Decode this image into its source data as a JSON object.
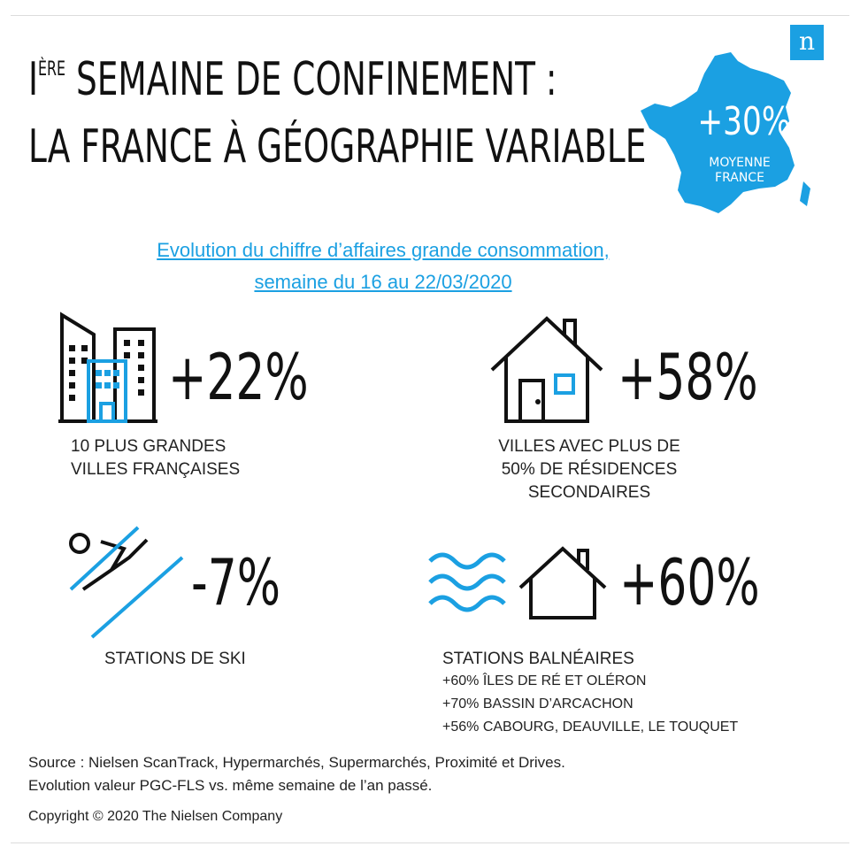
{
  "header": {
    "title_line1_prefix": "I",
    "title_line1_sup": "ÈRE",
    "title_line1_rest": " SEMAINE DE CONFINEMENT :",
    "title_line2": "LA FRANCE À GÉOGRAPHIE VARIABLE",
    "logo_letter": "n"
  },
  "france": {
    "value": "+30%",
    "label_line1": "MOYENNE",
    "label_line2": "FRANCE"
  },
  "subtitle": {
    "line1": "Evolution du chiffre d’affaires grande consommation,",
    "line2": "semaine du 16 au 22/03/2020"
  },
  "stats": [
    {
      "value": "+22%",
      "label_line1": "10 PLUS GRANDES",
      "label_line2": "VILLES FRANÇAISES"
    },
    {
      "value": "+58%",
      "label_line1": "VILLES AVEC PLUS DE",
      "label_line2": "50% DE RÉSIDENCES",
      "label_line3": "SECONDAIRES"
    },
    {
      "value": "-7%",
      "label_line1": "STATIONS DE SKI"
    },
    {
      "value": "+60%",
      "label_line1": "STATIONS BALNÉAIRES",
      "details": [
        "+60% ÎLES DE RÉ ET OLÉRON",
        "+70% BASSIN D’ARCACHON",
        "+56% CABOURG, DEAUVILLE, LE TOUQUET"
      ]
    }
  ],
  "footer": {
    "source_line1": "Source : Nielsen ScanTrack, Hypermarchés, Supermarchés, Proximité et Drives.",
    "source_line2": "Evolution valeur PGC-FLS vs. même semaine de l’an passé.",
    "copyright": "Copyright © 2020 The Nielsen Company"
  },
  "colors": {
    "accent": "#1ba0e2",
    "text": "#111111"
  },
  "icons": [
    "city-buildings-icon",
    "house-icon",
    "skier-icon",
    "beach-house-waves-icon",
    "france-map-icon",
    "nielsen-logo-icon"
  ]
}
